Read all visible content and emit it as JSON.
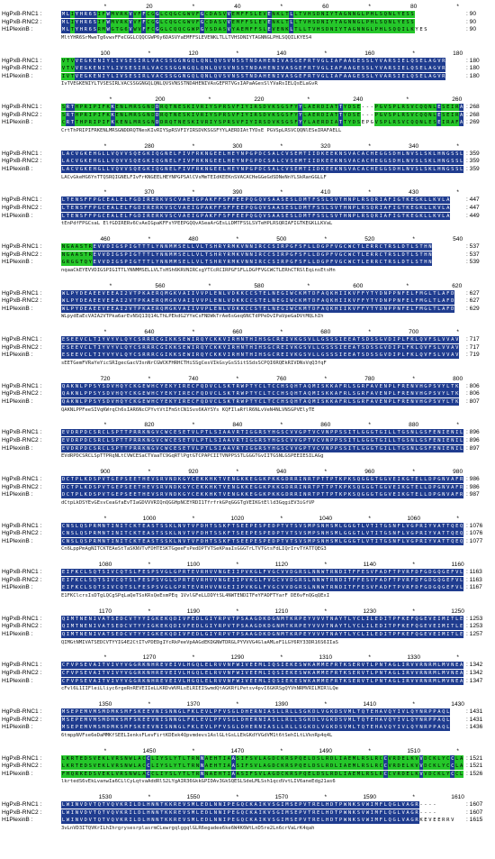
{
  "colors": {
    "identical": "#1f3c8f",
    "similar": "#25c72a",
    "background": "#ffffff",
    "text": "#000000"
  },
  "sequence_names": [
    "HgPxB-RNC1",
    "HgPxB-RNC2",
    "H1PlexinB"
  ],
  "blocks": [
    {
      "ruler": [
        [
          "*",
          "10"
        ],
        [
          "20",
          "20"
        ],
        [
          "*",
          "30"
        ],
        [
          "40",
          "40"
        ],
        [
          "*",
          "50"
        ],
        [
          "60",
          "60"
        ],
        [
          "*",
          "70"
        ],
        [
          "80",
          "80"
        ],
        [
          "*",
          "90"
        ]
      ],
      "seqs": [
        "MLIYHR6SIFWMVRKVVFFCGGLCQGCGWVFGCDASVVEMFFSLEVENKLTLLTVHSDNIYTAGNNGLPHLSQNLYESS",
        "MLIYHR6SIFWMVRKVVFFCGGLCQGCGWVFGCDASVVEMFFSLEVENKLTLLTVHSDNIYTAGNNGLPHLSQNLYESS",
        "MLTYHR6SRMWGTG6VWVFFCGGLCQQCGWPGYSDASVYAEMFFSLEVENKLTLLTVHSDNIYTAGNNGLPHLSQQILKYES"
      ],
      "consensus": "MltYHR6SrMweTg6vwvFFeCGGLCQQCGWP6y6DASVYaEMFFSLEVENKLTLLTVHSDNIYTAGNNGLPHLSQQILKYES4",
      "end": [
        "90",
        "90",
        "90"
      ]
    },
    {
      "ruler": [
        [
          "100",
          "100"
        ],
        [
          "*",
          "110"
        ],
        [
          "120",
          "120"
        ],
        [
          "*",
          "130"
        ],
        [
          "140",
          "140"
        ],
        [
          "*",
          "150"
        ],
        [
          "160",
          "160"
        ],
        [
          "*",
          "170"
        ],
        [
          "180",
          "180"
        ]
      ],
      "seqs": [
        "VTVVEGKENIYLIVSESIRLVACSSGGNGQLQNLQVSVNSSTNDAHENIVASGEFRTVGLIAFAAGESSLYVARSIELQSELAGVR",
        "VTVVEGKENIYLIVSESIRLVACSSGGNGQLQNLQVSVNSSTNDAHENIVASGEFRTVGLIAFAAGESSLYVARSIELQSELAGVR",
        "IVTVEGKENIYLIVSESIRLVACSSGGNGQLQNLQVSVNSSTNDAHENIVASGEFRTVGLIAFAAGESSLYVARSIELQSELAGVR"
      ],
      "consensus": "IvTVEGKENIYLTVSESIRLVACSSGGNGQLQNLQVSVNSSTNDAHENIVAsGEFRTVGsIAPaAGesSlYVaRsIELQsELaGvR",
      "end": [
        "180",
        "180",
        "180"
      ]
    },
    {
      "ruler": [
        [
          "*",
          "190"
        ],
        [
          "200",
          "200"
        ],
        [
          "*",
          "210"
        ],
        [
          "220",
          "220"
        ],
        [
          "*",
          "230"
        ],
        [
          "240",
          "240"
        ],
        [
          "*",
          "250"
        ],
        [
          "260",
          "260"
        ]
      ],
      "seqs": [
        "SRTHPRIPIFKKENLMRSGNDDRQTNESKIVRIYSPRSVFIYIRSDVKSGSFYYLAERDIATTYDSE---PGVSPLRSVCQQNLESEIRAFAEL",
        "SRTHPRIPIFKKENLMRSGNDDRQTNESKIVRIYSPRSVFIYIRSDVKSGSFYYLAERDIATTYDSE---PGVSPLRSVCQQNLESEIRAFAEL",
        "CRTTHPRIPIFKKENLMRSGNDDRQTNESKIVRIYSPRSVFIYIRSDVKSGSFYYLAERDIATTYDSEPGVSPLRSVCQQNLESEIRAFAELL"
      ],
      "consensus": "CrtThPRIPIFRKENLMRSGNDDRQTNesKIvRIYSpRSVFIYIRSDVKSGSFYYLAERDIAtTYDsE PGVSpLRSVCQQNlESeIRAFAELL",
      "end": [
        "268",
        "268",
        "269"
      ]
    },
    {
      "ruler": [
        [
          "*",
          "270"
        ],
        [
          "280",
          "280"
        ],
        [
          "*",
          "290"
        ],
        [
          "300",
          "300"
        ],
        [
          "*",
          "310"
        ],
        [
          "320",
          "320"
        ],
        [
          "*",
          "330"
        ],
        [
          "340",
          "340"
        ],
        [
          "*",
          "350"
        ]
      ],
      "seqs": [
        "LACVGKEHGLLVQVVSQEGKIQGNELFIVFRKNGEELHEYNPGPDCSALCVSEMTIIDKEEKNSVACACHEGGSDHLNVSLSKLHNGSSLF",
        "LACVGKEHGLLVQVVSQEGKIQGNELFIVFRKNGEELHEYNPGPDCSALCVSEMTIIDKEEKNSVACACHEGGSDHLNVSLSKLHNGSSLF",
        "LACVGKEHGLLVQVVSQEGKIQGNELFIVFRKNGEELHEYNPGPDCSALCVSEMTIIDKEEKNSVACACHEGGSDHLNVSLSKLHNGSSLF"
      ],
      "consensus": "LACvGkeHG6YnTTQSRQIGNELFIvFrKNGEELHEYNPGPSAlCVsMmTEIdKEEKnSVACACHeGGeGdSDNeNnYLSkRanGGLLF",
      "end": [
        "359",
        "359",
        "359"
      ]
    },
    {
      "ruler": [
        [
          "*",
          "360"
        ],
        [
          "370",
          "370"
        ],
        [
          "*",
          "380"
        ],
        [
          "390",
          "390"
        ],
        [
          "*",
          "400"
        ],
        [
          "410",
          "410"
        ],
        [
          "*",
          "420"
        ],
        [
          "430",
          "430"
        ],
        [
          "*",
          "440"
        ]
      ],
      "seqs": [
        "LTENSFFPGCEALELFGDIRERKVSCVAEIGPAKFFSFFEEPQGQVSAASESLDMTFSSLSVTHNPLRSQRIAFIGTKEGKLLKVLA",
        "LTENSFFPGCEALELFGDIRERKVSCVAEIGPAKFFSFFEEPQGQVSAASESLDMTFSSLSVTHNPLRSQRIAFIGTKEGKLLKVLA",
        "LTENSFFPGCEALELFGDIRERKVSCVAEIGPAKFFSFFEEPQGQVSAASESLDMTFSSLSVTHNPLRSQRIAFIGTKEGKLLKVLA"
      ],
      "consensus": "tEnPdfFPGCsaL ElfGDIRERv6CvAeIGpaKFFsYPEEPGQQvASeaArGEsLLDMTFSSLSVTeHPLRSQRIAFIGTKEGKLLKVaL",
      "end": [
        "447",
        "447",
        "449"
      ]
    },
    {
      "ruler": [
        [
          "460",
          "460"
        ],
        [
          "*",
          "470"
        ],
        [
          "480",
          "480"
        ],
        [
          "*",
          "490"
        ],
        [
          "500",
          "500"
        ],
        [
          "*",
          "510"
        ],
        [
          "520",
          "520"
        ],
        [
          "*",
          "530"
        ],
        [
          "540",
          "540"
        ]
      ],
      "seqs": [
        "NGAASTREVVDIGSPIGTTTLYNNMMSELLVLTSHRYRMKVNNIRCCSIRPGFSFLLDGPFVGCWCTLERRCTRSLDTLSTHN",
        "NGAASTREVVDIGSPIGTTTLYNNMMSELLVLTSHRYRMKVNNIRCCSIRPGFSFLLDGPFVGCWCTLERRCTRSLDTLSTHN",
        "GRGGTQYEVVDIGSPIGTTTLYNNMMSELLVLTSHRYRMKVNNIRCCSIRPGFSFLLDGPFVGCWCTLERRCTRSLDTLSTHN"
      ],
      "consensus": "nqaaCkEYEVVDIGSPIGITTLYNNMMSELLVLTsHSh6KRVNIRCsgYTCcRCIRPGFSFLLDGPFVGCWCTLERhCTRSlEqinsEtsHn",
      "end": [
        "537",
        "537",
        "539"
      ]
    },
    {
      "ruler": [
        [
          "*",
          "550"
        ],
        [
          "560",
          "560"
        ],
        [
          "*",
          "570"
        ],
        [
          "580",
          "580"
        ],
        [
          "*",
          "590"
        ],
        [
          "600",
          "600"
        ],
        [
          "*",
          "610"
        ],
        [
          "620",
          "620"
        ]
      ],
      "seqs": [
        "WLPYDEAEEVEEAI2VTPKAERQMGKVAIIVVPLENLVDKKCCSTELNEGIWCKMTDFAQKHIIKVFFYTYDNPPNFELFMGLTLAFD",
        "WLPYDEAEEVEEAI2VTPKAERQMGKVAIIVVPLENLVDKKCCSTELNEGIWCKMTDFAQKHIIKVFFYTYDNPPNFELFMGLTLAFD",
        "WLPYDEAEEVEEAI2VTPKAERQMGKVAIIVVPLENLVDKKCCSTELNEGIWCKMTDFAQKHIIKVFFYTYDNPPNFELFMGLTLAFD"
      ],
      "consensus": "WLpydEaEcVAIA2VTPka6arEvNSQ1IQ14LThLPEkdG2YYeCsFNDWkTrAe6sGeq6NCTdPPeDvIPaVpeGaDVtMQLhIh",
      "end": [
        "627",
        "627",
        "629"
      ]
    },
    {
      "ruler": [
        [
          "*",
          "630"
        ],
        [
          "640",
          "640"
        ],
        [
          "*",
          "650"
        ],
        [
          "660",
          "660"
        ],
        [
          "*",
          "670"
        ],
        [
          "680",
          "680"
        ],
        [
          "*",
          "690"
        ],
        [
          "700",
          "700"
        ],
        [
          "*",
          "710"
        ]
      ],
      "seqs": [
        "ESEEVCLTIYVYVLQYCSRRRCGIKKSEWIRQYCKKVIRHNTHIHSGCREIVKGSVLLGSSSIEEATSDSSGVDIPLFKLQVFSLVVAV",
        "ESEEVCLTIYVYVLQYCSRRRCGIKKSEWIRQYCKKVIRHNTHIHSGCREIVKGSVLLGSSSIEEATSDSSGVDIPLFKLQVFSLVVAV",
        "ESEEVCLTIYVYVLQYCSRRRCGIKKSEWIRQYCKKVIRHNTHIHSGCREIVKGSVLLGSSSIEEATSDSSGVDIPLFKLQVFSLVVAV"
      ],
      "consensus": "sEETGemFVRaYeYicSRIgecGacV3snNrCGWCKFHRHCTHiSSgCesVIkGsyGsSSitSSdsSCPQI6RQEkRIVDNsVqQ3fqF",
      "end": [
        "717",
        "717",
        "719"
      ]
    },
    {
      "ruler": [
        [
          "720",
          "720"
        ],
        [
          "*",
          "730"
        ],
        [
          "740",
          "740"
        ],
        [
          "*",
          "750"
        ],
        [
          "760",
          "760"
        ],
        [
          "*",
          "770"
        ],
        [
          "780",
          "780"
        ],
        [
          "*",
          "790"
        ],
        [
          "800",
          "800"
        ]
      ],
      "seqs": [
        "QAKNLPPSYSDVHQYCKGEWHCYEKYIRECFQDVCLSKTRWPTYCLTCCHSQHTAQMISKKAFRLSGRFAVENPLFRENVHGPSVYLTK",
        "QAKNLPPSYSDVHQYCKGEWHCYEKYIRECFQDVCLSKTRWPTYCLTCCHSQHTAQMISKKAFRLSGRFAVENPLFRENVHGPSVYLTK",
        "QAKNLPPSYSDVHQYCKGEWHCYEKYIRECFQDVCLSKTRWPTYCLTCCHSQHTAQMISKKAFRLSGRFAVENPLFRENVHGPSVYLTK"
      ],
      "consensus": "QAKNLPPFeeSIVqKWrqCh6sIAR6NcCPYvtVtIFmStCN1Svs6KAYSYs KQFIlaRflR6NLvVeN4NLVNSGPVElyTE",
      "end": [
        "806",
        "806",
        "807"
      ]
    },
    {
      "ruler": [
        [
          "*",
          "810"
        ],
        [
          "820",
          "820"
        ],
        [
          "*",
          "830"
        ],
        [
          "840",
          "840"
        ],
        [
          "*",
          "850"
        ],
        [
          "860",
          "860"
        ],
        [
          "*",
          "870"
        ],
        [
          "880",
          "880"
        ],
        [
          "*",
          "890"
        ]
      ],
      "seqs": [
        "EVDRPDCSRCLSPTTPRRKNGVCWCESETVLPTLSIAAVRTIGGRSYHGSCVVGPTVCVNPPSSITLGGGTGILLTGSNLGSFENIENILV",
        "EVDRPDCSRCLSPTTPRRKNGVCWCESETVLPTLSIAAVRTIGGRSYHGSCVVGPTVCVNPPSSITLGGGTGILLTGSNLGSFENIENILV",
        "EVDRPDCSRCLSPTTPRRKNGVCWCESETVLPTLSIAAVRTIGGRSYHGSCVVGPTVCVNPPSSITLGGGTGILLTGSNLGSFENIENILV"
      ],
      "consensus": "EVdRPDCSRCLSpTTPRqNLtCVWCESaCTVaaTC9GqRTlPgtGTCPAPCIITVNPPSSTLGGGTGvIITGSNLGSPEEIESILAGg",
      "end": [
        "896",
        "896",
        "897"
      ]
    },
    {
      "ruler": [
        [
          "900",
          "900"
        ],
        [
          "*",
          "910"
        ],
        [
          "920",
          "920"
        ],
        [
          "*",
          "930"
        ],
        [
          "940",
          "940"
        ],
        [
          "*",
          "950"
        ],
        [
          "960",
          "960"
        ],
        [
          "*",
          "970"
        ],
        [
          "980",
          "980"
        ]
      ],
      "seqs": [
        "DCTPLKDSPVTGEPSEETHEVSRVNDKGYCEKKHKTVENGKKEGGKPKKGDRRINRTPTTPTKPKSQGGGTGGVEIKGTELLDPGNVAFRGVDL",
        "DCTPLKDSPVTGEPSEETHEVSRVNDKGYCEKKHKTVENGKKEGGKPKKGDRRINRTPTTPTKPKSQGGGTGGVEIKGTELLDPGNVAFRGVDL",
        "DCTPLKDSPVTGEPSEETHEVSRVNDKGYCEKKHKTVENGKKEGGKPKKGDRRINRTPTTPTKPKSQGGGTGGVEIKGTELLDPGNVAFRGVDL"
      ],
      "consensus": "dCtpLkDSYEvGEsvCeaGfaEvTIaGDVVVRIQnQGGHpNCEYRDI1TfrfrkGPqGGGTgVEIKGtElld3GqgiEV3iGfVP",
      "end": [
        "986",
        "986",
        "987"
      ]
    },
    {
      "ruler": [
        [
          "*",
          "990"
        ],
        [
          "1000",
          "1000"
        ],
        [
          "*",
          "1010"
        ],
        [
          "1020",
          "1020"
        ],
        [
          "*",
          "1030"
        ],
        [
          "1040",
          "1040"
        ],
        [
          "*",
          "1050"
        ],
        [
          "1060",
          "1060"
        ],
        [
          "*",
          "1070"
        ]
      ],
      "seqs": [
        "CNSLQSPRMNTINITCKTEASTSSKLNVTVFDHTSSKFTSEEPESPEDPTVTSVSMPSNHSMLGGGTLVTITGSNFLVGPRIYVATTQEQA",
        "CNSLQSPRMNTINITCKTEASTSSKLNVTVFDHTSSKFTSEEPESPEDPTVTSVSMPSNHSMLGGGTLVTITGSNFLVGPRIYVATTQEQA",
        "CNSLQSPRMNTINITCKTEASTSSKLNVTVFDHTSSKFTSEEPESPEDPTVTSVSMPSNHSMLGGGTLVTITGSNFLVGPRIYVATTQEQA"
      ],
      "consensus": "Cn6LppPmAgNITCKTEAeStTaSKNVTvFDHTESKTGgeeFsPedDPTVTSeKPaaIsGGGTrLTVTGtsFdLIQrIrvTYATTQEG3",
      "end": [
        "1076",
        "1076",
        "1077"
      ]
    },
    {
      "ruler": [
        [
          "1080",
          "1080"
        ],
        [
          "*",
          "1090"
        ],
        [
          "1100",
          "1100"
        ],
        [
          "*",
          "1110"
        ],
        [
          "1120",
          "1120"
        ],
        [
          "*",
          "1130"
        ],
        [
          "1140",
          "1140"
        ],
        [
          "*",
          "1150"
        ],
        [
          "1160",
          "1160"
        ]
      ],
      "seqs": [
        "EIFKCLSQTSIVCQTSLFESPSVGLGPRTEVRHVVNGEIIPVKGLFVGCVVDGRSLNNWTRNDITFFESVFADFTPVRFDFGDGQGEFVLEVGA",
        "EIFKCLSQTSIVCQTSLFESPSVGLGPRTEVRHVVNGEIIPVKGLFVGCVVDGRSLNNWTRNDITFFESVFADFTPVRFDFGDGQGEFVLEVGA",
        "EIFKCLSQTSIVCQTSLFESPSVGLGPRTEVRHVVNGEIIPVKGLFVGCVVDGRSLNNWTRNDITFFESVFADFTPVRFDFGDGQGEFVLEVGA"
      ],
      "consensus": "E1FKClcrsIsDTgLQCgSPqLaQeTSsKRsQeEsmPEq 1VvlGFeLLDDYtSL4NWTENDITFeYFADFTYarF DE6vFnQGqQExI",
      "end": [
        "1163",
        "1163",
        "1167"
      ]
    },
    {
      "ruler": [
        [
          "1170",
          "1170"
        ],
        [
          "*",
          "1180"
        ],
        [
          "1190",
          "1190"
        ],
        [
          "*",
          "1200"
        ],
        [
          "1210",
          "1210"
        ],
        [
          "*",
          "1220"
        ],
        [
          "1230",
          "1230"
        ],
        [
          "*",
          "1240"
        ],
        [
          "1250",
          "1250"
        ]
      ],
      "seqs": [
        "QIMTNENIVATSEDCVTYYIGKEKQDIVFEDLGIYRPVTPSAAGDKDGNMTKRPEYVVVTNAYTLYCLILEDITPFKEFQGEVEIMITLEA",
        "QIMTNENIVATSEDCVTYYIGKEKQDIVFEDLGIYRPVTPSAAGDKDGNMTKRPEYVVVTNAYTLYCLILEDITPFKEFQGEVEIMITLEA",
        "QIMTNENIVATSEDCVTYYIGKEKQDIVFEDLGIYRPVTPSAAGDKDGNMTKRPEYVVVTNAYTLYCLILEDITPFKEFQGEVEIMITLEA"
      ],
      "consensus": "QIMGtNMIVATSEDCVTYYIG4E2CtITvPDEDgIYcRkPeeVpAAGdEKDGNWTDRGLPYVVVG4GlaAMLeF1LGY6RY33DR16S6IIaS",
      "end": [
        "1253",
        "1253",
        "1257"
      ]
    },
    {
      "ruler": [
        [
          "*",
          "1260"
        ],
        [
          "1270",
          "1270"
        ],
        [
          "*",
          "1280"
        ],
        [
          "1290",
          "1290"
        ],
        [
          "*",
          "1300"
        ],
        [
          "1310",
          "1310"
        ],
        [
          "*",
          "1320"
        ],
        [
          "1330",
          "1330"
        ],
        [
          "*",
          "1340"
        ]
      ],
      "seqs": [
        "CFVPSEVAITVIVYVGGRKNHREVEIVLHGQLELRVVNFWIVEEMLIQSIEKESWKAMMEFRTKSERVTLPNTAGLIRVVRNRMLMVNEALMKR",
        "CFVPSEVAITVIVYVGGRKNHREVEIVLHGQLELRVVNFWIVEEMLIQSIEKESWKAMMEFRTKSERVTLPNTAGLIRVVRNRMLMVNEALMKR",
        "CFVPSEVAITVIVYVGGRKNHREVEIVLHGQLELRVVNFWIVEEMLIQSIEKESWKAMMEFRTKSERVTLPNTAGLIRVVRNRMLMVNEALMKR"
      ],
      "consensus": "cFvl6L1IIFleiLliyc6rgeRnREVEIIeLLKRDvWVRLsELRIEISwmdQtAGKRfLPetsv4pvI6GKRSgQYVhNRMVRILMIRlLQe",
      "end": [
        "1342",
        "1342",
        "1347"
      ]
    },
    {
      "ruler": [
        [
          "1350",
          "1350"
        ],
        [
          "*",
          "1360"
        ],
        [
          "1370",
          "1370"
        ],
        [
          "*",
          "1380"
        ],
        [
          "1390",
          "1390"
        ],
        [
          "*",
          "1400"
        ],
        [
          "1410",
          "1410"
        ],
        [
          "*",
          "1420"
        ],
        [
          "1430",
          "1430"
        ]
      ],
      "seqs": [
        "MSEPEMVMSMDMKSMFSKEEVNISNNGLFKLEVLPFVSGLDHERNIASLLRLLSGKDLVGKDSVMLTQTEHAVQYIVLQYNRPPAQL",
        "MSEPEMVMSMDMKSMFSKEEVNISNNGLFKLEVLPFVSGLDHERNIASLLRLLSGKDLVGKDSVMLTQTEHAVQYIVLQYNRPPAQL",
        "MSEPEMVMSMDMKSMFSKEEVNISNNGLFKLEVLPFVSGLDHERNIASLLRLLSGKDLVGKDSVMLTQTEHAVQYIVLQYNRPPAQL"
      ],
      "consensus": "6tmppNVFse6eDaMMKfSEELIenksFLevFirtKDEek4Qpvmdevs1AslGLtGsLLEkGKdYVGdVM1t6tSehILtLVknRp4q4L",
      "end": [
        "1431",
        "1431",
        "1436"
      ]
    },
    {
      "ruler": [
        [
          "*",
          "1440"
        ],
        [
          "1450",
          "1450"
        ],
        [
          "*",
          "1460"
        ],
        [
          "1470",
          "1470"
        ],
        [
          "*",
          "1480"
        ],
        [
          "1490",
          "1490"
        ],
        [
          "*",
          "1500"
        ],
        [
          "1510",
          "1510"
        ],
        [
          "*",
          "1520"
        ]
      ],
      "seqs": [
        "LKRTEDSVEKLVRSNWLACCLIYSLYTLTRNNAEHTIAASIFSVLAGDCKRSPQELDSLRDLIAEMLRSLRCCVRDELKVVDCKLYCCLAS",
        "LKRTEDSVEKLVRSNWLACCLIYSLYTLTRNNAEHTIAASIFSVLAGDCKRSPQELDSLRDLIAEMLRSLRCCVRDELKVVDCKLYCCLAS",
        "FHQRKEDSVEKLVRSNWLACCLIYSLYTLTRNNAEHTIAASIFSVLAGDCKRSPQELDSLRDLIAEMLRSLRCCVRDELKVVDCKLYCCLAS"
      ],
      "consensus": "lkrtedS6vEkLvanwIa6CLlCyLqtvaAddRlS2LYgAIR36GkkGPIDAv3GkSQESLSdeLMLSsh1qcdVvtLIV6aneEdg21as6",
      "end": [
        "1521",
        "1521",
        "1526"
      ]
    },
    {
      "ruler": [
        [
          "1530",
          "1530"
        ],
        [
          "*",
          "1540"
        ],
        [
          "1550",
          "1550"
        ],
        [
          "*",
          "1560"
        ],
        [
          "1570",
          "1570"
        ],
        [
          "*",
          "1580"
        ],
        [
          "1590",
          "1590"
        ],
        [
          "*",
          "1600"
        ],
        [
          "1610",
          "1610"
        ]
      ],
      "seqs": [
        "LWINVDVTQTVQVKRILDLHNNTKKREVSMLEDLNNIPEGQCKAIKVSGIMSEPVTRELHDTPWNKSVWIMFLQGLVAGR----",
        "LWINVDVTQTVQVKRILDLHNNTKKREVSMLEDLNNIPEGQCKAIKVSGIMSEPVTRELHDTPWNKSVWIMFLQGLVAGR----",
        "LWINVDVTQTVQVKRILDLHNNTKKREVSMLEDLNNIPEGQCKAIKVSGIMSEPVTRELHDTPWNKSVWIMFLQGLVAGRKEVEERRV"
      ],
      "consensus": "3vLnVD3ITQVKrILhIhrgrysesrplasrmCLewrgqlggqlGLR6egadee6ke6W4K6WtLnD5re2Ln6crVaLrK4qah",
      "end": [
        "1607",
        "1607",
        "1615"
      ]
    }
  ]
}
